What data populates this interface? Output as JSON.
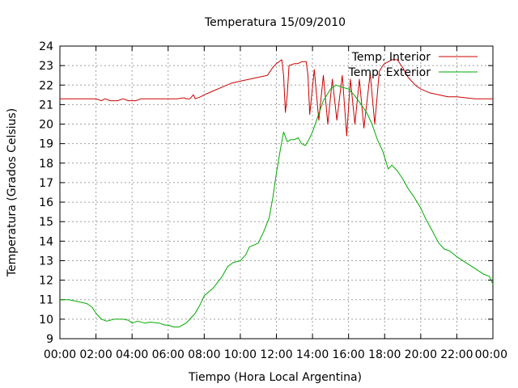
{
  "chart_data": {
    "type": "line",
    "title": "Temperatura 15/09/2010",
    "xlabel": "Tiempo (Hora Local Argentina)",
    "ylabel": "Temperatura (Grados Celsius)",
    "ylim": [
      9,
      24
    ],
    "yticks": [
      9,
      10,
      11,
      12,
      13,
      14,
      15,
      16,
      17,
      18,
      19,
      20,
      21,
      22,
      23,
      24
    ],
    "xlim": [
      0,
      24
    ],
    "xtick_labels": [
      "00:00",
      "02:00",
      "04:00",
      "06:00",
      "08:00",
      "10:00",
      "12:00",
      "14:00",
      "16:00",
      "18:00",
      "20:00",
      "22:00",
      "00:00"
    ],
    "grid": true,
    "legend_position": "top-right",
    "series": [
      {
        "name": "Temp. Interior",
        "color": "#cc0000",
        "points": [
          [
            0,
            21.3
          ],
          [
            1.0,
            21.3
          ],
          [
            2.0,
            21.3
          ],
          [
            2.3,
            21.2
          ],
          [
            2.5,
            21.3
          ],
          [
            2.8,
            21.2
          ],
          [
            3.2,
            21.2
          ],
          [
            3.5,
            21.3
          ],
          [
            3.8,
            21.2
          ],
          [
            4.2,
            21.2
          ],
          [
            4.5,
            21.3
          ],
          [
            5.0,
            21.3
          ],
          [
            6.0,
            21.3
          ],
          [
            6.5,
            21.3
          ],
          [
            6.9,
            21.35
          ],
          [
            7.0,
            21.3
          ],
          [
            7.2,
            21.3
          ],
          [
            7.4,
            21.5
          ],
          [
            7.5,
            21.3
          ],
          [
            7.8,
            21.4
          ],
          [
            8.0,
            21.5
          ],
          [
            8.5,
            21.7
          ],
          [
            9.0,
            21.9
          ],
          [
            9.5,
            22.1
          ],
          [
            10.0,
            22.2
          ],
          [
            10.5,
            22.3
          ],
          [
            11.0,
            22.4
          ],
          [
            11.5,
            22.5
          ],
          [
            11.8,
            22.9
          ],
          [
            12.0,
            23.1
          ],
          [
            12.3,
            23.3
          ],
          [
            12.4,
            22.5
          ],
          [
            12.5,
            20.6
          ],
          [
            12.6,
            21.5
          ],
          [
            12.7,
            23.0
          ],
          [
            13.0,
            23.1
          ],
          [
            13.2,
            23.1
          ],
          [
            13.4,
            23.2
          ],
          [
            13.65,
            23.2
          ],
          [
            13.75,
            22.5
          ],
          [
            13.85,
            20.5
          ],
          [
            14.1,
            22.8
          ],
          [
            14.35,
            20.2
          ],
          [
            14.6,
            22.5
          ],
          [
            14.85,
            20.0
          ],
          [
            15.1,
            22.3
          ],
          [
            15.35,
            20.2
          ],
          [
            15.65,
            22.5
          ],
          [
            15.9,
            19.4
          ],
          [
            16.1,
            22.3
          ],
          [
            16.35,
            20.0
          ],
          [
            16.6,
            22.3
          ],
          [
            16.85,
            19.8
          ],
          [
            17.2,
            22.6
          ],
          [
            17.45,
            20.0
          ],
          [
            17.7,
            22.7
          ],
          [
            17.9,
            23.0
          ],
          [
            18.0,
            23.1
          ],
          [
            18.4,
            23.3
          ],
          [
            18.7,
            23.3
          ],
          [
            19.0,
            22.9
          ],
          [
            19.3,
            22.4
          ],
          [
            19.7,
            22.0
          ],
          [
            20.0,
            21.8
          ],
          [
            20.5,
            21.6
          ],
          [
            21.0,
            21.5
          ],
          [
            21.5,
            21.4
          ],
          [
            22.0,
            21.4
          ],
          [
            22.5,
            21.35
          ],
          [
            23.0,
            21.3
          ],
          [
            24.0,
            21.3
          ]
        ]
      },
      {
        "name": "Temp. Exterior",
        "color": "#00aa00",
        "points": [
          [
            0,
            11.0
          ],
          [
            0.5,
            11.0
          ],
          [
            1.0,
            10.9
          ],
          [
            1.5,
            10.8
          ],
          [
            1.8,
            10.6
          ],
          [
            2.0,
            10.3
          ],
          [
            2.3,
            10.0
          ],
          [
            2.6,
            9.9
          ],
          [
            3.0,
            10.0
          ],
          [
            3.5,
            10.0
          ],
          [
            3.8,
            9.95
          ],
          [
            4.0,
            9.8
          ],
          [
            4.3,
            9.9
          ],
          [
            4.7,
            9.8
          ],
          [
            5.0,
            9.85
          ],
          [
            5.5,
            9.8
          ],
          [
            5.8,
            9.7
          ],
          [
            6.0,
            9.7
          ],
          [
            6.3,
            9.6
          ],
          [
            6.6,
            9.6
          ],
          [
            6.8,
            9.7
          ],
          [
            7.0,
            9.8
          ],
          [
            7.2,
            10.0
          ],
          [
            7.5,
            10.3
          ],
          [
            7.8,
            10.8
          ],
          [
            8.0,
            11.2
          ],
          [
            8.5,
            11.6
          ],
          [
            9.0,
            12.2
          ],
          [
            9.3,
            12.7
          ],
          [
            9.6,
            12.9
          ],
          [
            10.0,
            13.0
          ],
          [
            10.3,
            13.3
          ],
          [
            10.5,
            13.7
          ],
          [
            11.0,
            13.9
          ],
          [
            11.3,
            14.5
          ],
          [
            11.6,
            15.2
          ],
          [
            11.8,
            16.2
          ],
          [
            12.0,
            17.5
          ],
          [
            12.2,
            18.6
          ],
          [
            12.4,
            19.6
          ],
          [
            12.6,
            19.1
          ],
          [
            12.8,
            19.2
          ],
          [
            13.0,
            19.2
          ],
          [
            13.2,
            19.3
          ],
          [
            13.4,
            19.0
          ],
          [
            13.6,
            18.9
          ],
          [
            13.8,
            19.2
          ],
          [
            14.0,
            19.6
          ],
          [
            14.3,
            20.4
          ],
          [
            14.6,
            21.2
          ],
          [
            15.0,
            21.8
          ],
          [
            15.3,
            22.0
          ],
          [
            15.6,
            21.9
          ],
          [
            16.0,
            21.8
          ],
          [
            16.3,
            21.5
          ],
          [
            16.7,
            21.0
          ],
          [
            17.0,
            20.6
          ],
          [
            17.3,
            20.0
          ],
          [
            17.6,
            19.2
          ],
          [
            17.9,
            18.6
          ],
          [
            18.2,
            17.7
          ],
          [
            18.4,
            17.9
          ],
          [
            18.7,
            17.6
          ],
          [
            19.0,
            17.2
          ],
          [
            19.3,
            16.7
          ],
          [
            19.6,
            16.3
          ],
          [
            20.0,
            15.7
          ],
          [
            20.3,
            15.1
          ],
          [
            20.6,
            14.6
          ],
          [
            21.0,
            13.9
          ],
          [
            21.3,
            13.6
          ],
          [
            21.6,
            13.5
          ],
          [
            22.0,
            13.2
          ],
          [
            22.5,
            12.9
          ],
          [
            23.0,
            12.6
          ],
          [
            23.5,
            12.3
          ],
          [
            23.8,
            12.2
          ],
          [
            24.0,
            11.8
          ]
        ]
      }
    ]
  }
}
